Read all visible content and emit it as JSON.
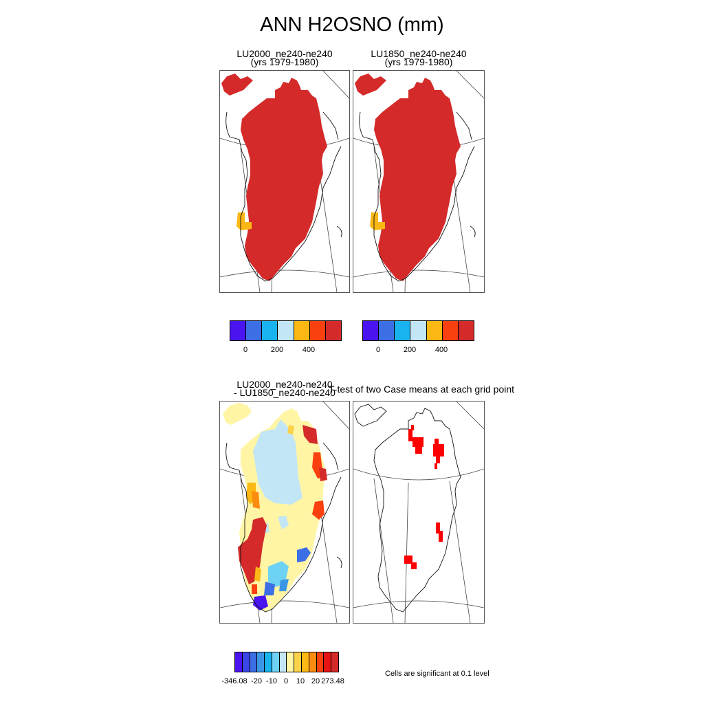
{
  "title": "ANN H2OSNO (mm)",
  "panels": {
    "p1": {
      "line1": "LU2000_ne240-ne240",
      "line2": "(yrs 1979-1980)"
    },
    "p2": {
      "line1": "LU1850_ne240-ne240",
      "line2": "(yrs 1979-1980)"
    },
    "p3": {
      "line1": "LU2000_ne240-ne240",
      "line2": "- LU1850_ne240-ne240"
    },
    "p4": {
      "line1": "T-test of two Case means at each grid point"
    }
  },
  "colorbar_top": {
    "colors": [
      "#4a14f0",
      "#3c6fe6",
      "#19b4f0",
      "#c2e6f5",
      "#fbb814",
      "#fb400f",
      "#d42a2a"
    ],
    "labels": [
      "0",
      "200",
      "400"
    ]
  },
  "colorbar_bottom": {
    "colors": [
      "#4a14f0",
      "#3c46e6",
      "#3c6fe6",
      "#3c96e6",
      "#19b4f0",
      "#6ed2f5",
      "#c2e6f5",
      "#fff5a5",
      "#fbd24a",
      "#fbb814",
      "#fb8c0f",
      "#fb400f",
      "#e61414",
      "#d42a2a"
    ],
    "labels": [
      "-346.08",
      "-20",
      "-10",
      "0",
      "10",
      "20",
      "273.48"
    ]
  },
  "note": "Cells are significant at 0.1 level"
}
